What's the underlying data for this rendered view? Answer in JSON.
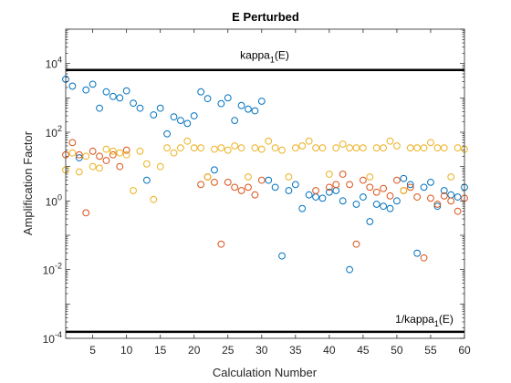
{
  "chart_data": {
    "type": "scatter",
    "title": "E Perturbed",
    "xlabel": "Calculation Number",
    "ylabel": "Amplification Factor",
    "xlim": [
      1,
      60
    ],
    "ylim_exponent": [
      -4,
      5
    ],
    "yscale": "log",
    "grid": false,
    "legend": "none",
    "x_ticks": [
      5,
      10,
      15,
      20,
      25,
      30,
      35,
      40,
      45,
      50,
      55,
      60
    ],
    "y_ticks": [
      {
        "value": 0.0001,
        "base": "10",
        "exp": "-4"
      },
      {
        "value": 0.01,
        "base": "10",
        "exp": "-2"
      },
      {
        "value": 1,
        "base": "10",
        "exp": "0"
      },
      {
        "value": 100,
        "base": "10",
        "exp": "2"
      },
      {
        "value": 10000,
        "base": "10",
        "exp": "4"
      }
    ],
    "reference_lines": [
      {
        "value": 6500,
        "label": "kappa",
        "subscript": "1",
        "suffix": "(E)",
        "color": "#000000"
      },
      {
        "value": 0.000155,
        "label": "1/kappa",
        "subscript": "1",
        "suffix": "(E)",
        "color": "#000000"
      }
    ],
    "series": [
      {
        "color": "#0072BD",
        "points": [
          [
            1,
            3500
          ],
          [
            2,
            2200
          ],
          [
            3,
            18
          ],
          [
            4,
            1700
          ],
          [
            5,
            2500
          ],
          [
            6,
            500
          ],
          [
            7,
            1500
          ],
          [
            8,
            1100
          ],
          [
            9,
            1000
          ],
          [
            10,
            1600
          ],
          [
            11,
            700
          ],
          [
            12,
            500
          ],
          [
            13,
            4
          ],
          [
            14,
            320
          ],
          [
            15,
            500
          ],
          [
            16,
            90
          ],
          [
            17,
            280
          ],
          [
            18,
            220
          ],
          [
            19,
            180
          ],
          [
            20,
            300
          ],
          [
            21,
            1500
          ],
          [
            22,
            950
          ],
          [
            23,
            8
          ],
          [
            24,
            680
          ],
          [
            25,
            1000
          ],
          [
            26,
            220
          ],
          [
            27,
            600
          ],
          [
            28,
            470
          ],
          [
            29,
            420
          ],
          [
            30,
            800
          ],
          [
            31,
            4
          ],
          [
            32,
            2.5
          ],
          [
            33,
            0.025
          ],
          [
            34,
            2
          ],
          [
            35,
            3
          ],
          [
            36,
            0.6
          ],
          [
            37,
            1.5
          ],
          [
            38,
            1.3
          ],
          [
            39,
            1.2
          ],
          [
            40,
            1.8
          ],
          [
            41,
            2
          ],
          [
            42,
            1
          ],
          [
            43,
            0.01
          ],
          [
            44,
            0.8
          ],
          [
            45,
            1.3
          ],
          [
            46,
            0.25
          ],
          [
            47,
            0.8
          ],
          [
            48,
            0.7
          ],
          [
            49,
            0.6
          ],
          [
            50,
            1
          ],
          [
            51,
            4.5
          ],
          [
            52,
            3
          ],
          [
            53,
            0.03
          ],
          [
            54,
            2.5
          ],
          [
            55,
            3.5
          ],
          [
            56,
            0.7
          ],
          [
            57,
            2
          ],
          [
            58,
            1.5
          ],
          [
            59,
            1.3
          ],
          [
            60,
            2.5
          ]
        ]
      },
      {
        "color": "#D95319",
        "points": [
          [
            1,
            22
          ],
          [
            2,
            50
          ],
          [
            3,
            22
          ],
          [
            4,
            0.45
          ],
          [
            5,
            28
          ],
          [
            6,
            20
          ],
          [
            7,
            15
          ],
          [
            8,
            22
          ],
          [
            9,
            10
          ],
          [
            10,
            30
          ],
          [
            21,
            3
          ],
          [
            22,
            5
          ],
          [
            23,
            3.5
          ],
          [
            24,
            0.055
          ],
          [
            25,
            3.5
          ],
          [
            26,
            2.5
          ],
          [
            27,
            2
          ],
          [
            28,
            2.5
          ],
          [
            29,
            1.5
          ],
          [
            30,
            4
          ],
          [
            38,
            2
          ],
          [
            40,
            2.5
          ],
          [
            41,
            3
          ],
          [
            42,
            6
          ],
          [
            43,
            3
          ],
          [
            44,
            0.055
          ],
          [
            45,
            4
          ],
          [
            46,
            2.5
          ],
          [
            47,
            1.8
          ],
          [
            48,
            2.3
          ],
          [
            49,
            1.4
          ],
          [
            50,
            4
          ],
          [
            51,
            2
          ],
          [
            52,
            2.5
          ],
          [
            53,
            1.3
          ],
          [
            54,
            0.022
          ],
          [
            55,
            1.2
          ],
          [
            56,
            0.8
          ],
          [
            57,
            1.4
          ],
          [
            58,
            1
          ],
          [
            59,
            0.5
          ],
          [
            60,
            1.2
          ]
        ]
      },
      {
        "color": "#EDB120",
        "points": [
          [
            1,
            8
          ],
          [
            2,
            25
          ],
          [
            3,
            7
          ],
          [
            4,
            20
          ],
          [
            5,
            10
          ],
          [
            6,
            9
          ],
          [
            7,
            32
          ],
          [
            8,
            28
          ],
          [
            9,
            25
          ],
          [
            10,
            22
          ],
          [
            11,
            2
          ],
          [
            12,
            28
          ],
          [
            13,
            12
          ],
          [
            14,
            1.1
          ],
          [
            15,
            10
          ],
          [
            16,
            35
          ],
          [
            17,
            25
          ],
          [
            18,
            35
          ],
          [
            19,
            55
          ],
          [
            20,
            35
          ],
          [
            21,
            35
          ],
          [
            22,
            5
          ],
          [
            23,
            32
          ],
          [
            24,
            35
          ],
          [
            25,
            30
          ],
          [
            26,
            40
          ],
          [
            27,
            35
          ],
          [
            28,
            5
          ],
          [
            29,
            35
          ],
          [
            30,
            32
          ],
          [
            31,
            55
          ],
          [
            32,
            35
          ],
          [
            33,
            30
          ],
          [
            34,
            5
          ],
          [
            35,
            35
          ],
          [
            36,
            40
          ],
          [
            37,
            55
          ],
          [
            38,
            35
          ],
          [
            39,
            35
          ],
          [
            40,
            6
          ],
          [
            41,
            35
          ],
          [
            42,
            45
          ],
          [
            43,
            35
          ],
          [
            44,
            35
          ],
          [
            45,
            35
          ],
          [
            46,
            5
          ],
          [
            47,
            35
          ],
          [
            48,
            35
          ],
          [
            49,
            55
          ],
          [
            50,
            40
          ],
          [
            51,
            2
          ],
          [
            52,
            35
          ],
          [
            53,
            35
          ],
          [
            54,
            35
          ],
          [
            55,
            50
          ],
          [
            56,
            35
          ],
          [
            57,
            35
          ],
          [
            58,
            5
          ],
          [
            59,
            35
          ],
          [
            60,
            32
          ]
        ]
      }
    ]
  }
}
